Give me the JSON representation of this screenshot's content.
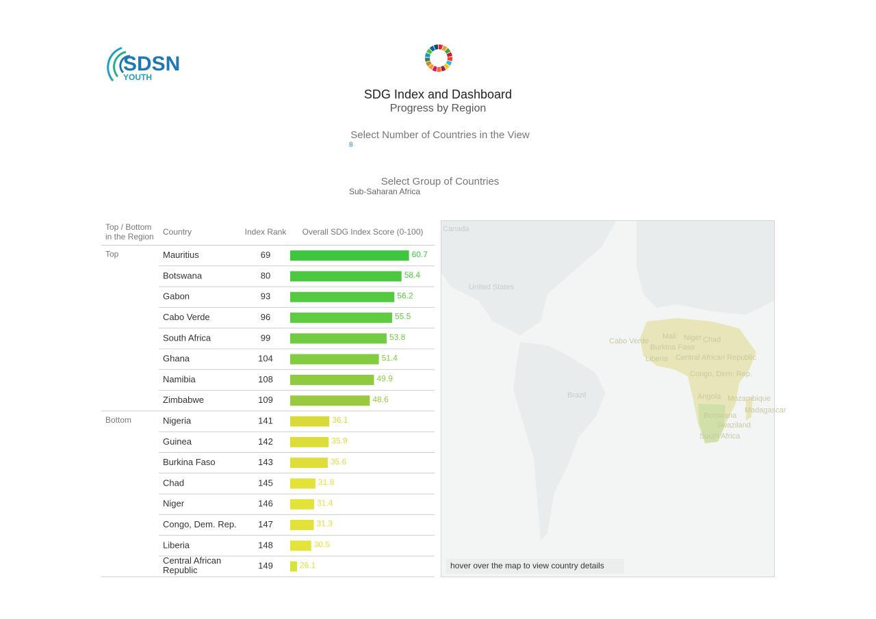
{
  "header": {
    "logo_text": "SDSN",
    "logo_sub": "YOUTH",
    "title": "SDG Index and Dashboard",
    "subtitle": "Progress by Region"
  },
  "controls": [
    {
      "label": "Select Number of Countries in the View",
      "value": "8"
    },
    {
      "label": "Select Group of Countries",
      "value": "Sub-Saharan Africa"
    }
  ],
  "table": {
    "columns": [
      "Top / Bottom in the Region",
      "Country",
      "Index Rank",
      "Overall SDG Index Score (0-100)"
    ],
    "xlim": [
      24,
      61
    ],
    "groups": [
      {
        "name": "Top",
        "rows": [
          {
            "country": "Mauritius",
            "rank": 69,
            "score": 60.7,
            "color": "#3ec63e"
          },
          {
            "country": "Botswana",
            "rank": 80,
            "score": 58.4,
            "color": "#4bc83e"
          },
          {
            "country": "Gabon",
            "rank": 93,
            "score": 56.2,
            "color": "#55ca40"
          },
          {
            "country": "Cabo Verde",
            "rank": 96,
            "score": 55.5,
            "color": "#5fcb40"
          },
          {
            "country": "South Africa",
            "rank": 99,
            "score": 53.8,
            "color": "#72cc42"
          },
          {
            "country": "Ghana",
            "rank": 104,
            "score": 51.4,
            "color": "#83cc42"
          },
          {
            "country": "Namibia",
            "rank": 108,
            "score": 49.9,
            "color": "#8ecb42"
          },
          {
            "country": "Zimbabwe",
            "rank": 109,
            "score": 48.6,
            "color": "#98c93e"
          }
        ]
      },
      {
        "name": "Bottom",
        "rows": [
          {
            "country": "Nigeria",
            "rank": 141,
            "score": 36.1,
            "color": "#d9d93a"
          },
          {
            "country": "Guinea",
            "rank": 142,
            "score": 35.9,
            "color": "#dcdc3a"
          },
          {
            "country": "Burkina Faso",
            "rank": 143,
            "score": 35.6,
            "color": "#dedd3a"
          },
          {
            "country": "Chad",
            "rank": 145,
            "score": 31.8,
            "color": "#e2e23a"
          },
          {
            "country": "Niger",
            "rank": 146,
            "score": 31.4,
            "color": "#e2e23a"
          },
          {
            "country": "Congo, Dem. Rep.",
            "rank": 147,
            "score": 31.3,
            "color": "#e2e23a"
          },
          {
            "country": "Liberia",
            "rank": 148,
            "score": 30.5,
            "color": "#e4e43a"
          },
          {
            "country": "Central African Republic",
            "rank": 149,
            "score": 26.1,
            "color": "#d4e43a"
          }
        ]
      }
    ]
  },
  "map": {
    "labels": [
      "Canada",
      "United States",
      "Brazil",
      "Cabo Verde",
      "Mali",
      "Niger",
      "Chad",
      "Burkina Faso",
      "Liberia",
      "Central African Republic",
      "Congo, Dem. Rep.",
      "Angola",
      "Mozambique",
      "Madagascar",
      "Botswana",
      "Swaziland",
      "South Africa"
    ],
    "note": "hover over the map to view country details"
  }
}
